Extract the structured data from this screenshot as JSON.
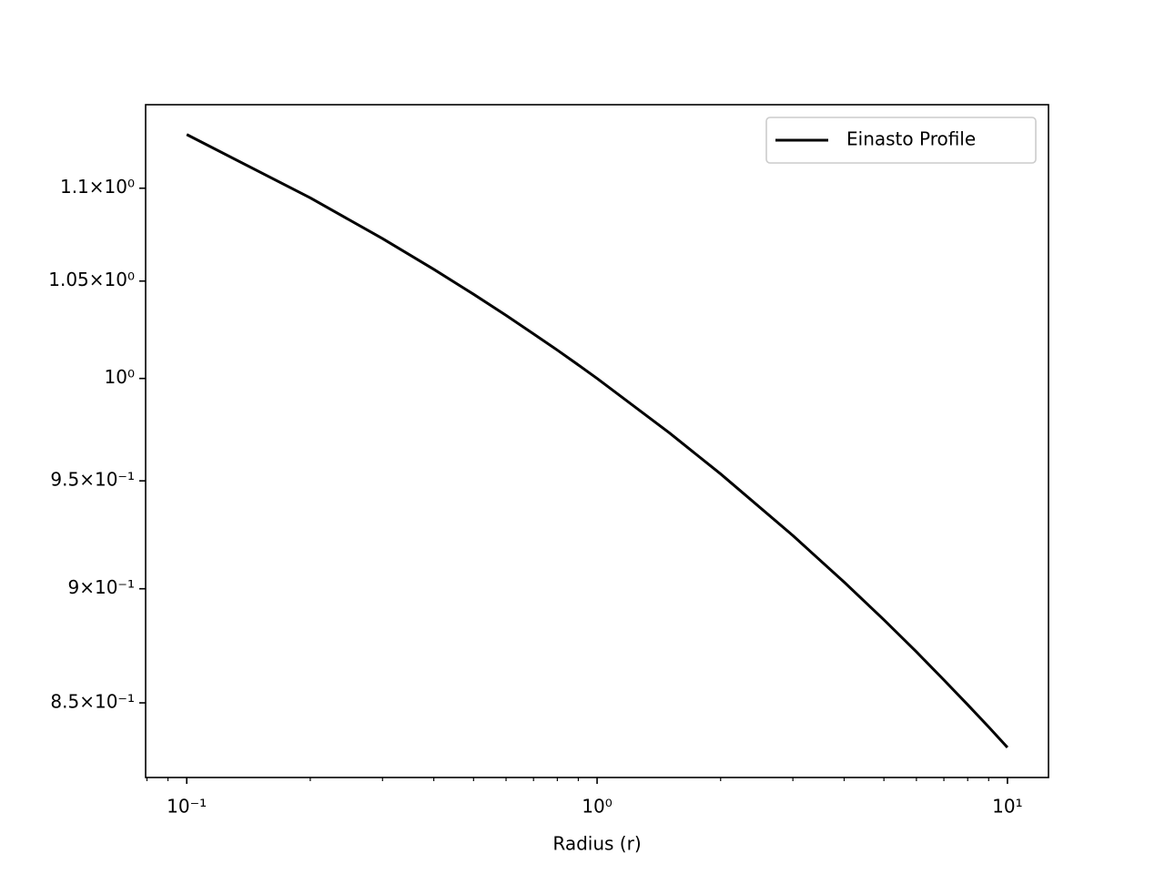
{
  "chart_data": {
    "type": "line",
    "xlabel": "Radius (r)",
    "xscale": "log",
    "yscale": "log",
    "x": [
      0.1,
      0.2,
      0.3,
      0.4,
      0.5,
      0.6,
      0.7,
      0.8,
      0.9,
      1,
      1.5,
      2,
      3,
      4,
      5,
      6,
      7,
      8,
      9,
      10
    ],
    "series": [
      {
        "name": "Einasto Profile",
        "color": "#000000",
        "values": [
          1.13,
          1.0947,
          1.0726,
          1.0562,
          1.0431,
          1.0321,
          1.0226,
          1.0143,
          1.0068,
          1.0,
          0.9731,
          0.9533,
          0.9243,
          0.903,
          0.8861,
          0.872,
          0.8598,
          0.8492,
          0.8398,
          0.8312
        ]
      }
    ],
    "xlim": [
      0.0794,
      12.59
    ],
    "ylim": [
      0.8188,
      1.147
    ],
    "xticks": [
      {
        "value": 0.1,
        "label": "10⁻¹"
      },
      {
        "value": 1,
        "label": "10⁰"
      },
      {
        "value": 10,
        "label": "10¹"
      }
    ],
    "xminorticks": [
      0.08,
      0.09,
      0.2,
      0.3,
      0.4,
      0.5,
      0.6,
      0.7,
      0.8,
      0.9,
      2,
      3,
      4,
      5,
      6,
      7,
      8,
      9
    ],
    "yticks": [
      {
        "value": 0.85,
        "label": "8.5×10⁻¹"
      },
      {
        "value": 0.9,
        "label": "9×10⁻¹"
      },
      {
        "value": 0.95,
        "label": "9.5×10⁻¹"
      },
      {
        "value": 1,
        "label": "10⁰"
      },
      {
        "value": 1.05,
        "label": "1.05×10⁰"
      },
      {
        "value": 1.1,
        "label": "1.1×10⁰"
      }
    ],
    "legend": "upper right",
    "grid": false
  }
}
